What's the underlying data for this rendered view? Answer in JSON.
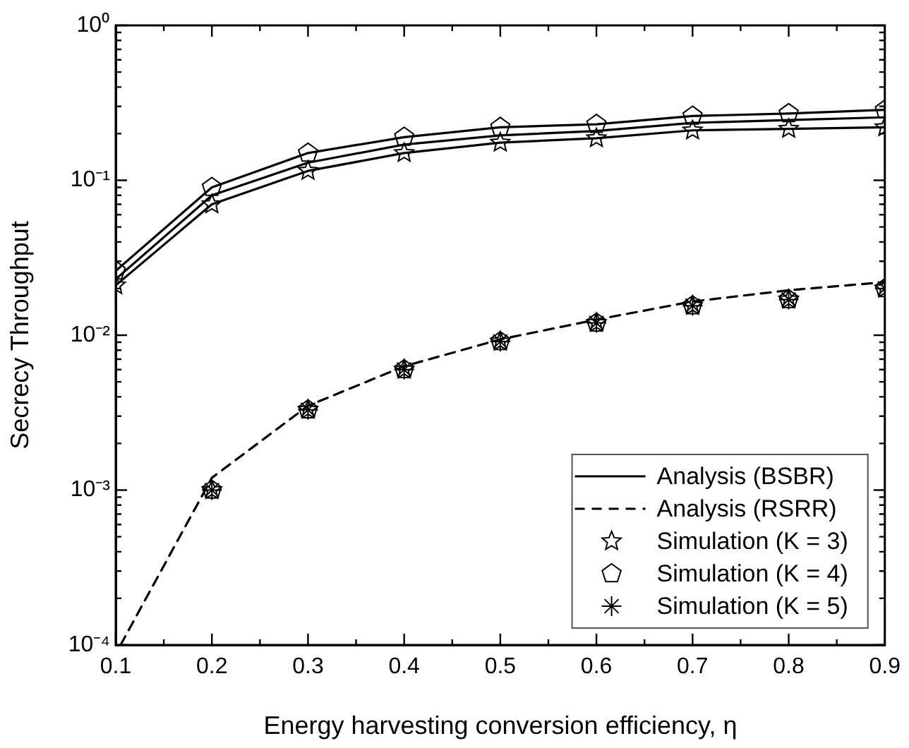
{
  "chart_data": {
    "type": "line",
    "xlabel": "Energy harvesting conversion efficiency, η",
    "ylabel": "Secrecy Throughput",
    "log": "y",
    "grid": false,
    "legend": "bottom right",
    "xlim": [
      0.1,
      0.9
    ],
    "ylim": [
      0.0001,
      1
    ],
    "xticks": [
      0.1,
      {
        "value": 0.15,
        "label": null
      },
      0.2,
      {
        "value": 0.25,
        "label": null
      },
      0.3,
      {
        "value": 0.35,
        "label": null
      },
      0.4,
      {
        "value": 0.45,
        "label": null
      },
      0.5,
      {
        "value": 0.55,
        "label": null
      },
      0.6,
      {
        "value": 0.65,
        "label": null
      },
      0.7,
      {
        "value": 0.75,
        "label": null
      },
      0.8,
      {
        "value": 0.85,
        "label": null
      },
      0.9
    ],
    "yticks": [
      {
        "value": 0.0001,
        "label": "10⁻⁴"
      },
      {
        "value": 0.0002,
        "label": null
      },
      {
        "value": 0.0003,
        "label": null
      },
      {
        "value": 0.0004,
        "label": null
      },
      {
        "value": 0.0005,
        "label": null
      },
      {
        "value": 0.0006,
        "label": null
      },
      {
        "value": 0.0007,
        "label": null
      },
      {
        "value": 0.0008,
        "label": null
      },
      {
        "value": 0.0009,
        "label": null
      },
      {
        "value": 0.001,
        "label": "10⁻³"
      },
      {
        "value": 0.002,
        "label": null
      },
      {
        "value": 0.003,
        "label": null
      },
      {
        "value": 0.004,
        "label": null
      },
      {
        "value": 0.005,
        "label": null
      },
      {
        "value": 0.006,
        "label": null
      },
      {
        "value": 0.007,
        "label": null
      },
      {
        "value": 0.008,
        "label": null
      },
      {
        "value": 0.009,
        "label": null
      },
      {
        "value": 0.01,
        "label": "10⁻²"
      },
      {
        "value": 0.02,
        "label": null
      },
      {
        "value": 0.03,
        "label": null
      },
      {
        "value": 0.04,
        "label": null
      },
      {
        "value": 0.05,
        "label": null
      },
      {
        "value": 0.06,
        "label": null
      },
      {
        "value": 0.07,
        "label": null
      },
      {
        "value": 0.08,
        "label": null
      },
      {
        "value": 0.09,
        "label": null
      },
      {
        "value": 0.1,
        "label": "10⁻¹"
      },
      {
        "value": 0.2,
        "label": null
      },
      {
        "value": 0.3,
        "label": null
      },
      {
        "value": 0.4,
        "label": null
      },
      {
        "value": 0.5,
        "label": null
      },
      {
        "value": 0.6,
        "label": null
      },
      {
        "value": 0.7,
        "label": null
      },
      {
        "value": 0.8,
        "label": null
      },
      {
        "value": 0.9,
        "label": null
      },
      {
        "value": 1,
        "label": "10⁰"
      }
    ],
    "series": [
      {
        "name": "Analysis (BSBR)",
        "color": "#000000",
        "line_style": "solid",
        "x": [
          0.1,
          0.2,
          0.3,
          0.4,
          0.5,
          0.6,
          0.7,
          0.8,
          0.9
        ],
        "values": [
          0.026,
          0.09,
          0.15,
          0.19,
          0.22,
          0.23,
          0.26,
          0.27,
          0.285
        ]
      },
      {
        "color": "#000000",
        "line_style": "solid",
        "x": [
          0.1,
          0.2,
          0.3,
          0.4,
          0.5,
          0.6,
          0.7,
          0.8,
          0.9
        ],
        "values": [
          0.023,
          0.08,
          0.13,
          0.17,
          0.195,
          0.208,
          0.235,
          0.245,
          0.255
        ]
      },
      {
        "color": "#000000",
        "line_style": "solid",
        "x": [
          0.1,
          0.2,
          0.3,
          0.4,
          0.5,
          0.6,
          0.7,
          0.8,
          0.9
        ],
        "values": [
          0.021,
          0.07,
          0.115,
          0.15,
          0.175,
          0.187,
          0.21,
          0.215,
          0.22
        ]
      },
      {
        "name": "Analysis (RSRR)",
        "color": "#000000",
        "line_style": "dashed",
        "x": [
          0.105,
          0.2,
          0.3,
          0.4,
          0.5,
          0.6,
          0.7,
          0.8,
          0.9
        ],
        "values": [
          0.0001,
          0.0012,
          0.0035,
          0.0063,
          0.0094,
          0.0126,
          0.0165,
          0.0195,
          0.022
        ]
      },
      {
        "name": "Simulation (K = 3)",
        "type": "scatter",
        "color": "#000000",
        "marker": "star",
        "x": [
          0.1,
          0.2,
          0.3,
          0.4,
          0.5,
          0.6,
          0.7,
          0.8,
          0.9,
          0.2,
          0.3,
          0.4,
          0.5,
          0.6,
          0.7,
          0.8,
          0.9
        ],
        "values": [
          0.021,
          0.07,
          0.115,
          0.15,
          0.175,
          0.187,
          0.21,
          0.215,
          0.22,
          0.001,
          0.0033,
          0.006,
          0.0091,
          0.012,
          0.0155,
          0.017,
          0.02
        ]
      },
      {
        "name": "Simulation (K = 4)",
        "type": "scatter",
        "color": "#000000",
        "x": [
          0.1,
          0.2,
          0.3,
          0.4,
          0.5,
          0.6,
          0.7,
          0.8,
          0.9,
          0.2,
          0.3,
          0.4,
          0.5,
          0.6,
          0.7,
          0.8,
          0.9
        ],
        "values": [
          0.026,
          0.09,
          0.15,
          0.19,
          0.22,
          0.23,
          0.26,
          0.27,
          0.285,
          0.001,
          0.0033,
          0.006,
          0.0091,
          0.012,
          0.0155,
          0.017,
          0.02
        ]
      },
      {
        "name": "Simulation (K = 5)",
        "type": "scatter",
        "color": "#000000",
        "marker": "cross",
        "x": [
          0.2,
          0.3,
          0.4,
          0.5,
          0.6,
          0.7,
          0.8,
          0.9
        ],
        "values": [
          0.001,
          0.0033,
          0.006,
          0.0091,
          0.012,
          0.0155,
          0.017,
          0.02
        ]
      }
    ]
  }
}
